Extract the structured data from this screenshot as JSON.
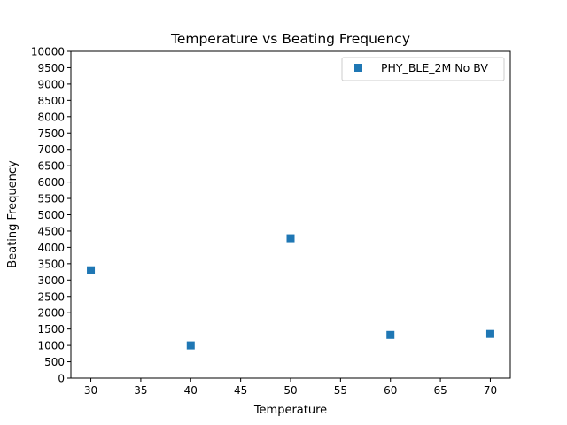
{
  "chart_data": {
    "type": "scatter",
    "title": "Temperature vs Beating Frequency",
    "xlabel": "Temperature",
    "ylabel": "Beating Frequency",
    "xlim": [
      28,
      72
    ],
    "ylim": [
      0,
      10000
    ],
    "xticks": [
      30,
      35,
      40,
      45,
      50,
      55,
      60,
      65,
      70
    ],
    "yticks": [
      0,
      500,
      1000,
      1500,
      2000,
      2500,
      3000,
      3500,
      4000,
      4500,
      5000,
      5500,
      6000,
      6500,
      7000,
      7500,
      8000,
      8500,
      9000,
      9500,
      10000
    ],
    "grid": false,
    "legend_position": "top-right",
    "series": [
      {
        "name": "PHY_BLE_2M No BV",
        "color": "#1f77b4",
        "marker": "square",
        "points": [
          {
            "x": 30,
            "y": 3300
          },
          {
            "x": 40,
            "y": 1000
          },
          {
            "x": 50,
            "y": 4280
          },
          {
            "x": 60,
            "y": 1320
          },
          {
            "x": 70,
            "y": 1350
          }
        ]
      }
    ]
  }
}
